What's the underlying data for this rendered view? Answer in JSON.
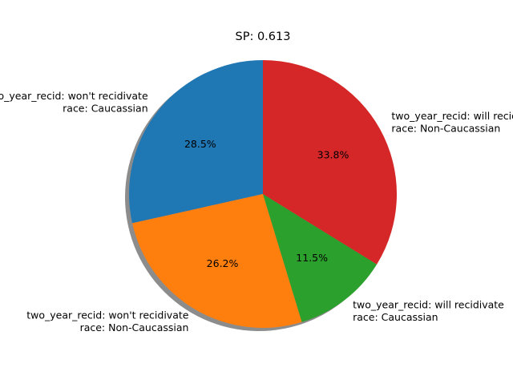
{
  "chart_data": {
    "type": "pie",
    "title": "SP: 0.613",
    "slices": [
      {
        "label_lines": [
          "two_year_recid: won't recidivate",
          "race: Caucassian"
        ],
        "value": 28.5,
        "pct_label": "28.5%",
        "color": "#1f77b4"
      },
      {
        "label_lines": [
          "two_year_recid: won't recidivate",
          "race: Non-Caucassian"
        ],
        "value": 26.2,
        "pct_label": "26.2%",
        "color": "#ff7f0e"
      },
      {
        "label_lines": [
          "two_year_recid: will recidivate",
          "race: Caucassian"
        ],
        "value": 11.5,
        "pct_label": "11.5%",
        "color": "#2ca02c"
      },
      {
        "label_lines": [
          "two_year_recid: will recidivate",
          "race: Non-Caucassian"
        ],
        "value": 33.8,
        "pct_label": "33.8%",
        "color": "#d62728"
      }
    ],
    "start_angle_deg": 90,
    "direction": "counterclockwise",
    "shadow": true,
    "legend": "none"
  }
}
